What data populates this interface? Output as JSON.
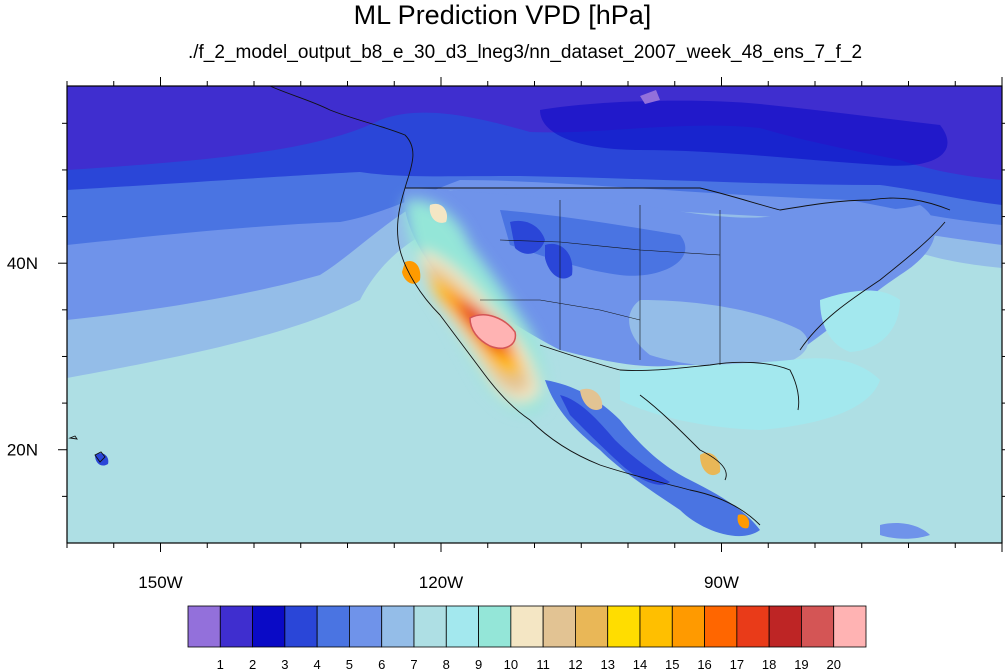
{
  "title": "ML Prediction VPD [hPa]",
  "subtitle": "./f_2_model_output_b8_e_30_d3_lneg3/nn_dataset_2007_week_48_ens_7_f_2",
  "map": {
    "lon_range": [
      -160,
      -60
    ],
    "lat_range": [
      10,
      59
    ],
    "lon_ticks": [
      {
        "lon": -150,
        "label": "150W"
      },
      {
        "lon": -120,
        "label": "120W"
      },
      {
        "lon": -90,
        "label": "90W"
      }
    ],
    "lat_ticks": [
      {
        "lat": 40,
        "label": "40N"
      },
      {
        "lat": 20,
        "label": "20N"
      }
    ],
    "units": "hPa"
  },
  "colorbar": {
    "colors": [
      "#9370db",
      "#3f2ecf",
      "#0a0ac6",
      "#2a46d8",
      "#4a74e2",
      "#6f93ea",
      "#94bde8",
      "#aedfe4",
      "#a3e8ee",
      "#94e6d8",
      "#f4e6c4",
      "#e2c393",
      "#e9b757",
      "#ffdd00",
      "#ffbf00",
      "#ff9a00",
      "#ff6600",
      "#e93b19",
      "#be2525",
      "#d45555",
      "#ffb3b3"
    ],
    "labels": [
      "1",
      "2",
      "3",
      "4",
      "5",
      "6",
      "7",
      "8",
      "9",
      "10",
      "11",
      "12",
      "13",
      "14",
      "15",
      "16",
      "17",
      "18",
      "19",
      "20"
    ]
  }
}
